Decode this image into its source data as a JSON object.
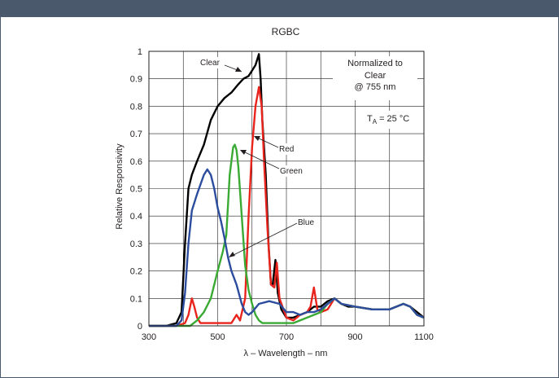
{
  "chart_data": {
    "type": "line",
    "title": "RGBC",
    "xlabel": "λ – Wavelength – nm",
    "ylabel": "Relative Responsivity",
    "xlim": [
      300,
      1100
    ],
    "ylim": [
      0,
      1
    ],
    "xticks": [
      300,
      500,
      700,
      900,
      1100
    ],
    "yticks": [
      0,
      0.1,
      0.2,
      0.3,
      0.4,
      0.5,
      0.6,
      0.7,
      0.8,
      0.9,
      1
    ],
    "grid": true,
    "annotations": {
      "box_line1": "Normalized to",
      "box_line2": "Clear",
      "box_line3": "@ 755 nm",
      "temp_main": "T",
      "temp_sub": "A",
      "temp_rest": "= 25 °C"
    },
    "series": [
      {
        "name": "Clear",
        "color": "#000000",
        "x": [
          300,
          350,
          380,
          395,
          405,
          415,
          425,
          440,
          460,
          480,
          500,
          520,
          540,
          560,
          575,
          590,
          600,
          610,
          615,
          620,
          625,
          630,
          640,
          648,
          655,
          660,
          668,
          675,
          685,
          700,
          720,
          740,
          760,
          780,
          800,
          820,
          840,
          860,
          880,
          900,
          950,
          1000,
          1040,
          1060,
          1080,
          1100
        ],
        "y": [
          0,
          0,
          0.01,
          0.05,
          0.3,
          0.5,
          0.55,
          0.6,
          0.66,
          0.75,
          0.8,
          0.83,
          0.85,
          0.88,
          0.9,
          0.91,
          0.93,
          0.95,
          0.97,
          0.99,
          0.9,
          0.75,
          0.55,
          0.3,
          0.15,
          0.15,
          0.24,
          0.12,
          0.06,
          0.03,
          0.03,
          0.04,
          0.05,
          0.07,
          0.07,
          0.09,
          0.1,
          0.08,
          0.07,
          0.07,
          0.06,
          0.06,
          0.08,
          0.07,
          0.05,
          0.03
        ]
      },
      {
        "name": "Red",
        "color": "#e8241c",
        "x": [
          300,
          380,
          405,
          415,
          425,
          432,
          440,
          450,
          470,
          500,
          540,
          555,
          565,
          580,
          590,
          600,
          610,
          620,
          628,
          635,
          645,
          655,
          665,
          672,
          680,
          700,
          720,
          740,
          760,
          770,
          780,
          790,
          800,
          820,
          840,
          860,
          900,
          950,
          1000,
          1040,
          1060,
          1080,
          1100
        ],
        "y": [
          0,
          0,
          0.01,
          0.04,
          0.1,
          0.07,
          0.03,
          0.01,
          0.01,
          0.01,
          0.01,
          0.04,
          0.02,
          0.1,
          0.4,
          0.65,
          0.8,
          0.87,
          0.8,
          0.6,
          0.35,
          0.15,
          0.14,
          0.23,
          0.1,
          0.03,
          0.02,
          0.04,
          0.05,
          0.07,
          0.14,
          0.06,
          0.05,
          0.06,
          0.1,
          0.08,
          0.07,
          0.06,
          0.06,
          0.08,
          0.07,
          0.04,
          0.03
        ]
      },
      {
        "name": "Green",
        "color": "#3aaa35",
        "x": [
          300,
          420,
          440,
          460,
          480,
          500,
          515,
          525,
          535,
          545,
          550,
          555,
          560,
          570,
          580,
          590,
          600,
          610,
          620,
          630,
          660,
          700,
          720,
          740,
          760,
          780,
          800,
          820,
          840,
          860,
          900,
          950,
          1000,
          1040,
          1060,
          1080,
          1100
        ],
        "y": [
          0,
          0,
          0.02,
          0.05,
          0.1,
          0.2,
          0.27,
          0.33,
          0.55,
          0.65,
          0.66,
          0.64,
          0.58,
          0.4,
          0.22,
          0.13,
          0.08,
          0.04,
          0.02,
          0.01,
          0.01,
          0.01,
          0.01,
          0.02,
          0.03,
          0.04,
          0.05,
          0.08,
          0.1,
          0.08,
          0.07,
          0.06,
          0.06,
          0.08,
          0.07,
          0.04,
          0.03
        ]
      },
      {
        "name": "Blue",
        "color": "#2c4d9e",
        "x": [
          300,
          380,
          395,
          405,
          415,
          425,
          440,
          460,
          470,
          480,
          490,
          500,
          510,
          520,
          530,
          540,
          555,
          570,
          580,
          590,
          600,
          620,
          650,
          680,
          700,
          720,
          740,
          760,
          780,
          800,
          820,
          840,
          860,
          900,
          950,
          1000,
          1040,
          1060,
          1080,
          1100
        ],
        "y": [
          0,
          0,
          0.02,
          0.12,
          0.3,
          0.42,
          0.48,
          0.55,
          0.57,
          0.55,
          0.5,
          0.43,
          0.38,
          0.32,
          0.25,
          0.2,
          0.15,
          0.08,
          0.05,
          0.04,
          0.05,
          0.08,
          0.09,
          0.08,
          0.05,
          0.05,
          0.04,
          0.05,
          0.05,
          0.06,
          0.08,
          0.1,
          0.08,
          0.07,
          0.06,
          0.06,
          0.08,
          0.07,
          0.04,
          0.03
        ]
      }
    ],
    "labels": [
      {
        "text": "Clear",
        "series": "Clear"
      },
      {
        "text": "Red",
        "series": "Red"
      },
      {
        "text": "Green",
        "series": "Green"
      },
      {
        "text": "Blue",
        "series": "Blue"
      }
    ]
  }
}
